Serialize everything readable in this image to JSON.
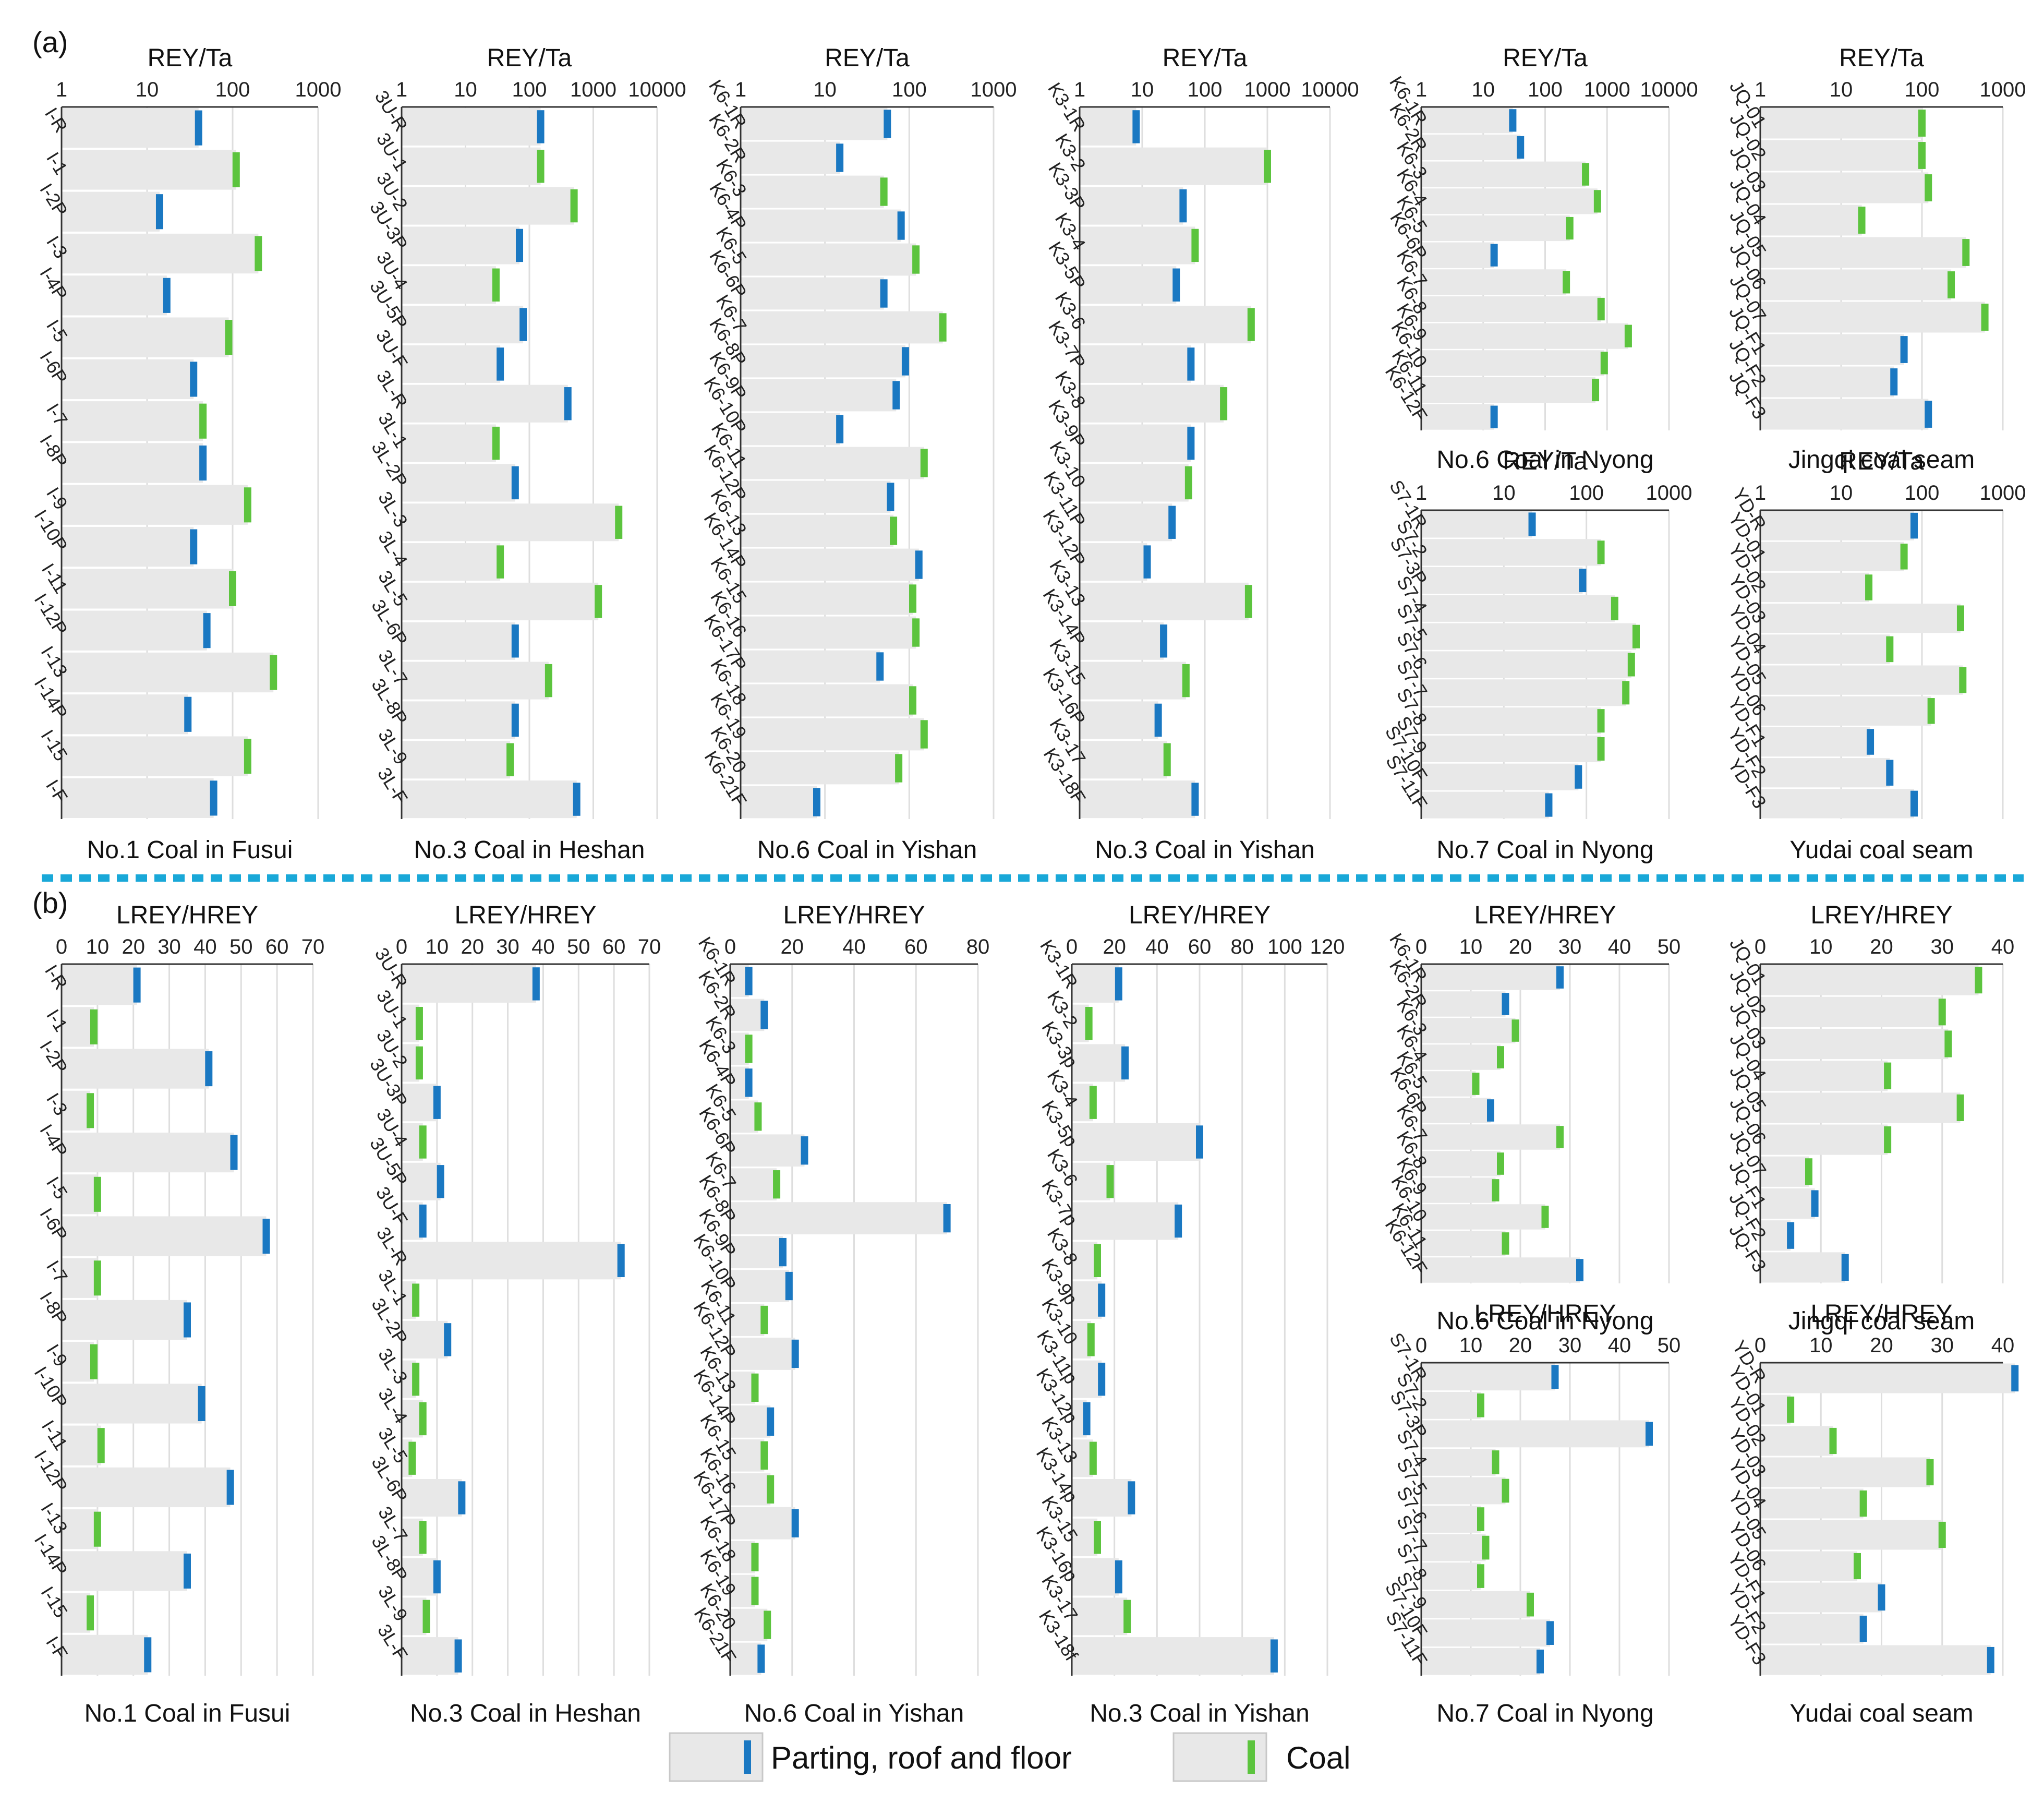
{
  "panel_labels": [
    "(a)",
    "(b)"
  ],
  "legend": {
    "parting_label": "Parting, roof and floor",
    "coal_label": "Coal",
    "colors": {
      "parting": "#1a78c2",
      "coal": "#5cc43e",
      "bar_fill": "#e8e8e8",
      "divider": "#19a8d8"
    }
  },
  "chart_data": [
    {
      "type": "bar",
      "orientation": "horizontal",
      "xscale": "log",
      "axis_label": "REY/Ta",
      "ticks": [
        "1",
        "10",
        "100",
        "1000"
      ],
      "xlim": [
        1,
        1000
      ],
      "title": "No.1 Coal in Fusui",
      "categories": [
        "I-R",
        "I-1",
        "I-2P",
        "I-3",
        "I-4P",
        "I-5",
        "I-6P",
        "I-7",
        "I-8P",
        "I-9",
        "I-10P",
        "I-11",
        "I-12P",
        "I-13",
        "I-14P",
        "I-15",
        "I-F"
      ],
      "values": [
        40,
        110,
        14,
        200,
        17,
        90,
        35,
        45,
        45,
        150,
        35,
        100,
        50,
        300,
        30,
        150,
        60
      ],
      "kinds": [
        "p",
        "c",
        "p",
        "c",
        "p",
        "c",
        "p",
        "c",
        "p",
        "c",
        "p",
        "c",
        "p",
        "c",
        "p",
        "c",
        "p"
      ]
    },
    {
      "type": "bar",
      "orientation": "horizontal",
      "xscale": "log",
      "axis_label": "REY/Ta",
      "ticks": [
        "1",
        "10",
        "100",
        "1000",
        "10000"
      ],
      "xlim": [
        1,
        10000
      ],
      "title": "No.3 Coal in Heshan",
      "categories": [
        "3U-R",
        "3U-1",
        "3U-2",
        "3U-3P",
        "3U-4",
        "3U-5P",
        "3U-F",
        "3L-R",
        "3L-1",
        "3L-2P",
        "3L-3",
        "3L-4",
        "3L-5",
        "3L-6P",
        "3L-7",
        "3L-8P",
        "3L-9",
        "3L-F"
      ],
      "values": [
        150,
        150,
        500,
        70,
        30,
        80,
        35,
        400,
        30,
        60,
        2500,
        35,
        1200,
        60,
        200,
        60,
        50,
        550
      ],
      "kinds": [
        "p",
        "c",
        "c",
        "p",
        "c",
        "p",
        "p",
        "p",
        "c",
        "p",
        "c",
        "c",
        "c",
        "p",
        "c",
        "p",
        "c",
        "p"
      ]
    },
    {
      "type": "bar",
      "orientation": "horizontal",
      "xscale": "log",
      "axis_label": "REY/Ta",
      "ticks": [
        "1",
        "10",
        "100",
        "1000"
      ],
      "xlim": [
        1,
        1000
      ],
      "title": "No.6 Coal in Yishan",
      "categories": [
        "K6-1R",
        "K6-2R",
        "K6-3",
        "K6-4P",
        "K6-5",
        "K6-6P",
        "K6-7",
        "K6-8P",
        "K6-9P",
        "K6-10P",
        "K6-11",
        "K6-12P",
        "K6-13",
        "K6-14P",
        "K6-15",
        "K6-16",
        "K6-17P",
        "K6-18",
        "K6-19",
        "K6-20",
        "K6-21F"
      ],
      "values": [
        55,
        15,
        50,
        80,
        120,
        50,
        250,
        90,
        70,
        15,
        150,
        60,
        65,
        130,
        110,
        120,
        45,
        110,
        150,
        75,
        8
      ],
      "kinds": [
        "p",
        "p",
        "c",
        "p",
        "c",
        "p",
        "c",
        "p",
        "p",
        "p",
        "c",
        "p",
        "c",
        "p",
        "c",
        "c",
        "p",
        "c",
        "c",
        "c",
        "p"
      ]
    },
    {
      "type": "bar",
      "orientation": "horizontal",
      "xscale": "log",
      "axis_label": "REY/Ta",
      "ticks": [
        "1",
        "10",
        "100",
        "1000",
        "10000"
      ],
      "xlim": [
        1,
        10000
      ],
      "title": "No.3 Coal in Yishan",
      "categories": [
        "K3-1R",
        "K3-2",
        "K3-3P",
        "K3-4",
        "K3-5P",
        "K3-6",
        "K3-7P",
        "K3-8",
        "K3-9P",
        "K3-10",
        "K3-11P",
        "K3-12P",
        "K3-13",
        "K3-14P",
        "K3-15",
        "K3-16P",
        "K3-17",
        "K3-18F"
      ],
      "values": [
        8,
        1000,
        45,
        70,
        35,
        550,
        60,
        200,
        60,
        55,
        30,
        12,
        500,
        22,
        50,
        18,
        25,
        70
      ],
      "kinds": [
        "p",
        "c",
        "p",
        "c",
        "p",
        "c",
        "p",
        "c",
        "p",
        "c",
        "p",
        "p",
        "c",
        "p",
        "c",
        "p",
        "c",
        "p"
      ]
    },
    {
      "type": "bar",
      "orientation": "horizontal",
      "xscale": "log",
      "axis_label": "REY/Ta",
      "ticks": [
        "1",
        "10",
        "100",
        "1000",
        "10000"
      ],
      "xlim": [
        1,
        10000
      ],
      "title": "No.6 Coal in Nyong",
      "categories": [
        "K6-1R",
        "K6-2R",
        "K6-3",
        "K6-4",
        "K6-5",
        "K6-6P",
        "K6-7",
        "K6-8",
        "K6-9",
        "K6-10",
        "K6-11",
        "K6-12F"
      ],
      "values": [
        30,
        40,
        450,
        700,
        250,
        15,
        220,
        800,
        2200,
        900,
        650,
        15
      ],
      "kinds": [
        "p",
        "p",
        "c",
        "c",
        "c",
        "p",
        "c",
        "c",
        "c",
        "c",
        "c",
        "p"
      ]
    },
    {
      "type": "bar",
      "orientation": "horizontal",
      "xscale": "log",
      "axis_label": "REY/Ta",
      "ticks": [
        "1",
        "10",
        "100",
        "1000"
      ],
      "xlim": [
        1,
        1000
      ],
      "title": "Jingqi coal seam",
      "categories": [
        "JQ-01",
        "JQ-02",
        "JQ-03",
        "JQ-04",
        "JQ-05",
        "JQ-06",
        "JQ-07",
        "JQ-F1",
        "JQ-F2",
        "JQ-F3"
      ],
      "values": [
        100,
        100,
        120,
        18,
        350,
        230,
        600,
        60,
        45,
        120
      ],
      "kinds": [
        "c",
        "c",
        "c",
        "c",
        "c",
        "c",
        "c",
        "p",
        "p",
        "p"
      ]
    },
    {
      "type": "bar",
      "orientation": "horizontal",
      "xscale": "log",
      "axis_label": "REY/Ta",
      "ticks": [
        "1",
        "10",
        "100",
        "1000"
      ],
      "xlim": [
        1,
        1000
      ],
      "title": "No.7 Coal in Nyong",
      "categories": [
        "S7-1R",
        "S7-2",
        "S7-3P",
        "S7-4",
        "S7-5",
        "S7-6",
        "S7-7",
        "S7-8",
        "S7-9",
        "S7-10F",
        "S7-11F"
      ],
      "values": [
        22,
        150,
        90,
        220,
        400,
        350,
        300,
        150,
        150,
        80,
        35
      ],
      "kinds": [
        "p",
        "c",
        "p",
        "c",
        "c",
        "c",
        "c",
        "c",
        "c",
        "p",
        "p"
      ]
    },
    {
      "type": "bar",
      "orientation": "horizontal",
      "xscale": "log",
      "axis_label": "REY/Ta",
      "ticks": [
        "1",
        "10",
        "100",
        "1000"
      ],
      "xlim": [
        1,
        1000
      ],
      "title": "Yudai coal seam",
      "categories": [
        "YD-R",
        "YD-01",
        "YD-02",
        "YD-03",
        "YD-04",
        "YD-05",
        "YD-06",
        "YD-F1",
        "YD-F2",
        "YD-F3"
      ],
      "values": [
        80,
        60,
        22,
        300,
        40,
        320,
        130,
        23,
        40,
        80
      ],
      "kinds": [
        "p",
        "c",
        "c",
        "c",
        "c",
        "c",
        "c",
        "p",
        "p",
        "p"
      ]
    },
    {
      "type": "bar",
      "orientation": "horizontal",
      "xscale": "linear",
      "axis_label": "LREY/HREY",
      "ticks": [
        "0",
        "10",
        "20",
        "30",
        "40",
        "50",
        "60",
        "70"
      ],
      "xlim": [
        0,
        70
      ],
      "title": "No.1 Coal in Fusui",
      "categories": [
        "I-R",
        "I-1",
        "I-2P",
        "I-3",
        "I-4P",
        "I-5",
        "I-6P",
        "I-7",
        "I-8P",
        "I-9",
        "I-10P",
        "I-11",
        "I-12P",
        "I-13",
        "I-14P",
        "I-15",
        "I-F"
      ],
      "values": [
        21,
        9,
        41,
        8,
        48,
        10,
        57,
        10,
        35,
        9,
        39,
        11,
        47,
        10,
        35,
        8,
        24
      ],
      "kinds": [
        "p",
        "c",
        "p",
        "c",
        "p",
        "c",
        "p",
        "c",
        "p",
        "c",
        "p",
        "c",
        "p",
        "c",
        "p",
        "c",
        "p"
      ]
    },
    {
      "type": "bar",
      "orientation": "horizontal",
      "xscale": "linear",
      "axis_label": "LREY/HREY",
      "ticks": [
        "0",
        "10",
        "20",
        "30",
        "40",
        "50",
        "60",
        "70"
      ],
      "xlim": [
        0,
        70
      ],
      "title": "No.3 Coal in Heshan",
      "categories": [
        "3U-R",
        "3U-1",
        "3U-2",
        "3U-3P",
        "3U-4",
        "3U-5P",
        "3U-F",
        "3L-R",
        "3L-1",
        "3L-2P",
        "3L-3",
        "3L-4",
        "3L-5",
        "3L-6P",
        "3L-7",
        "3L-8P",
        "3L-9",
        "3L-F"
      ],
      "values": [
        38,
        5,
        5,
        10,
        6,
        11,
        6,
        62,
        4,
        13,
        4,
        6,
        3,
        17,
        6,
        10,
        7,
        16
      ],
      "kinds": [
        "p",
        "c",
        "c",
        "p",
        "c",
        "p",
        "p",
        "p",
        "c",
        "p",
        "c",
        "c",
        "c",
        "p",
        "c",
        "p",
        "c",
        "p"
      ]
    },
    {
      "type": "bar",
      "orientation": "horizontal",
      "xscale": "linear",
      "axis_label": "LREY/HREY",
      "ticks": [
        "0",
        "20",
        "40",
        "60",
        "80"
      ],
      "xlim": [
        0,
        80
      ],
      "title": "No.6 Coal in Yishan",
      "categories": [
        "K6-1R",
        "K6-2R",
        "K6-3",
        "K6-4P",
        "K6-5",
        "K6-6P",
        "K6-7",
        "K6-8P",
        "K6-9P",
        "K6-10P",
        "K6-11",
        "K6-12P",
        "K6-13",
        "K6-14P",
        "K6-15",
        "K6-16",
        "K6-17P",
        "K6-18",
        "K6-19",
        "K6-20",
        "K6-21F"
      ],
      "values": [
        6,
        11,
        6,
        6,
        9,
        24,
        15,
        70,
        17,
        19,
        11,
        21,
        8,
        13,
        11,
        13,
        21,
        8,
        8,
        12,
        10
      ],
      "kinds": [
        "p",
        "p",
        "c",
        "p",
        "c",
        "p",
        "c",
        "p",
        "p",
        "p",
        "c",
        "p",
        "c",
        "p",
        "c",
        "c",
        "p",
        "c",
        "c",
        "c",
        "p"
      ]
    },
    {
      "type": "bar",
      "orientation": "horizontal",
      "xscale": "linear",
      "axis_label": "LREY/HREY",
      "ticks": [
        "0",
        "20",
        "40",
        "60",
        "80",
        "100",
        "120"
      ],
      "xlim": [
        0,
        120
      ],
      "title": "No.3 Coal in Yishan",
      "categories": [
        "K3-1R",
        "K3-2",
        "K3-3p",
        "K3-4",
        "K3-5p",
        "K3-6",
        "K3-7p",
        "K3-8",
        "K3-9p",
        "K3-10",
        "K3-11p",
        "K3-12p",
        "K3-13",
        "K3-14p",
        "K3-15",
        "K3-16p",
        "K3-17",
        "K3-18f"
      ],
      "values": [
        22,
        8,
        25,
        10,
        60,
        18,
        50,
        12,
        14,
        9,
        14,
        7,
        10,
        28,
        12,
        22,
        26,
        95
      ],
      "kinds": [
        "p",
        "c",
        "p",
        "c",
        "p",
        "c",
        "p",
        "c",
        "p",
        "c",
        "p",
        "p",
        "c",
        "p",
        "c",
        "p",
        "c",
        "p"
      ]
    },
    {
      "type": "bar",
      "orientation": "horizontal",
      "xscale": "linear",
      "axis_label": "LREY/HREY",
      "ticks": [
        "0",
        "10",
        "20",
        "30",
        "40",
        "50"
      ],
      "xlim": [
        0,
        50
      ],
      "title": "No.6 Coal in Nyong",
      "categories": [
        "K6-1R",
        "K6-2R",
        "K6-3",
        "K6-4",
        "K6-5",
        "K6-6P",
        "K6-7",
        "K6-8",
        "K6-9",
        "K6-10",
        "K6-11",
        "K6-12F"
      ],
      "values": [
        28,
        17,
        19,
        16,
        11,
        14,
        28,
        16,
        15,
        25,
        17,
        32
      ],
      "kinds": [
        "p",
        "p",
        "c",
        "c",
        "c",
        "p",
        "c",
        "c",
        "c",
        "c",
        "c",
        "p"
      ]
    },
    {
      "type": "bar",
      "orientation": "horizontal",
      "xscale": "linear",
      "axis_label": "LREY/HREY",
      "ticks": [
        "0",
        "10",
        "20",
        "30",
        "40"
      ],
      "xlim": [
        0,
        40
      ],
      "title": "Jingqi coal seam",
      "categories": [
        "JQ-01",
        "JQ-02",
        "JQ-03",
        "JQ-04",
        "JQ-05",
        "JQ-06",
        "JQ-07",
        "JQ-F1",
        "JQ-F2",
        "JQ-F3"
      ],
      "values": [
        36,
        30,
        31,
        21,
        33,
        21,
        8,
        9,
        5,
        14
      ],
      "kinds": [
        "c",
        "c",
        "c",
        "c",
        "c",
        "c",
        "c",
        "p",
        "p",
        "p"
      ]
    },
    {
      "type": "bar",
      "orientation": "horizontal",
      "xscale": "linear",
      "axis_label": "LREY/HREY",
      "ticks": [
        "0",
        "10",
        "20",
        "30",
        "40",
        "50"
      ],
      "xlim": [
        0,
        50
      ],
      "title": "No.7 Coal in Nyong",
      "categories": [
        "S7-1R",
        "S7-2",
        "S7-3P",
        "S7-4",
        "S7-5",
        "S7-6",
        "S7-7",
        "S7-8",
        "S7-9",
        "S7-10F",
        "S7-11F"
      ],
      "values": [
        27,
        12,
        46,
        15,
        17,
        12,
        13,
        12,
        22,
        26,
        24
      ],
      "kinds": [
        "p",
        "c",
        "p",
        "c",
        "c",
        "c",
        "c",
        "c",
        "c",
        "p",
        "p"
      ]
    },
    {
      "type": "bar",
      "orientation": "horizontal",
      "xscale": "linear",
      "axis_label": "LREY/HREY",
      "ticks": [
        "0",
        "10",
        "20",
        "30",
        "40"
      ],
      "xlim": [
        0,
        40
      ],
      "title": "Yudai coal seam",
      "categories": [
        "YD-R",
        "YD-01",
        "YD-02",
        "YD-03",
        "YD-04",
        "YD-05",
        "YD-06",
        "YD-F1",
        "YD-F2",
        "YD-F3"
      ],
      "values": [
        42,
        5,
        12,
        28,
        17,
        30,
        16,
        20,
        17,
        38
      ],
      "kinds": [
        "p",
        "c",
        "c",
        "c",
        "c",
        "c",
        "c",
        "p",
        "p",
        "p"
      ]
    }
  ]
}
